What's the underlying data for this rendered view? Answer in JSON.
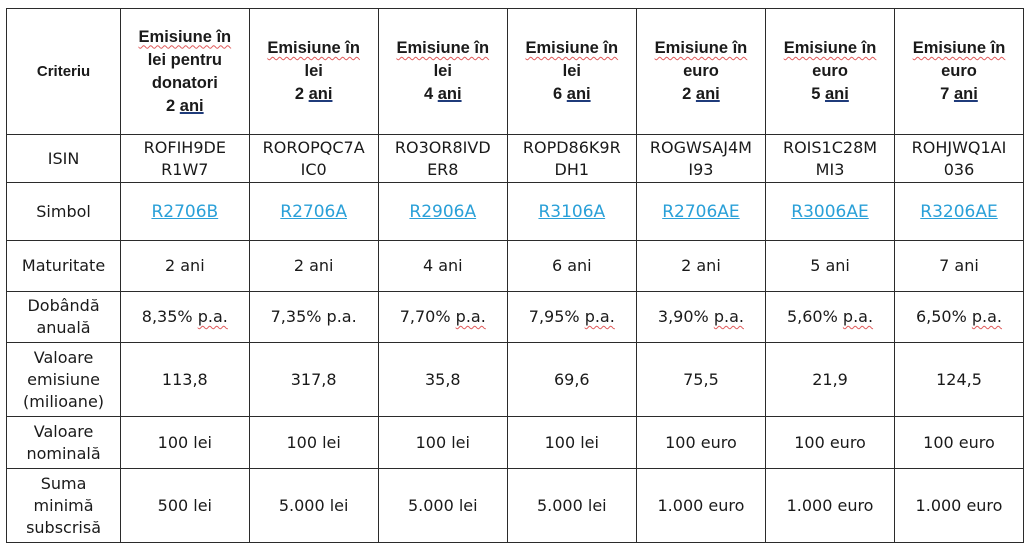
{
  "header": {
    "criteria_label": "Criteriu",
    "columns": [
      {
        "line1": "Emisiune în",
        "line2": "lei pentru",
        "line3": "donatori",
        "years_num": "2",
        "years_word": "ani"
      },
      {
        "line1": "Emisiune în",
        "line2": "lei",
        "years_num": "2",
        "years_word": "ani"
      },
      {
        "line1": "Emisiune în",
        "line2": "lei",
        "years_num": "4",
        "years_word": "ani"
      },
      {
        "line1": "Emisiune în",
        "line2": "lei",
        "years_num": "6",
        "years_word": "ani"
      },
      {
        "line1": "Emisiune în",
        "line2": "euro",
        "years_num": "2",
        "years_word": "ani"
      },
      {
        "line1": "Emisiune în",
        "line2": "euro",
        "years_num": "5",
        "years_word": "ani"
      },
      {
        "line1": "Emisiune în",
        "line2": "euro",
        "years_num": "7",
        "years_word": "ani"
      }
    ]
  },
  "rows": {
    "isin": {
      "label": "ISIN",
      "values": [
        "ROFIH9DE\nR1W7",
        "ROROPQC7A\nIC0",
        "RO3OR8IVD\nER8",
        "ROPD86K9R\nDH1",
        "ROGWSAJ4M\nI93",
        "ROIS1C28M\nMI3",
        "ROHJWQ1AI\n036"
      ]
    },
    "simbol": {
      "label": "Simbol",
      "values": [
        "R2706B",
        "R2706A",
        "R2906A",
        "R3106A",
        "R2706AE",
        "R3006AE",
        "R3206AE"
      ]
    },
    "maturitate": {
      "label": "Maturitate",
      "values": [
        "2 ani",
        "2 ani",
        "4 ani",
        "6 ani",
        "2 ani",
        "5 ani",
        "7 ani"
      ]
    },
    "dobanda": {
      "label": "Dobândă\nanuală",
      "values": [
        "8,35%",
        "7,35%",
        "7,70%",
        "7,95%",
        "3,90%",
        "5,60%",
        "6,50%"
      ],
      "unit": "p.a."
    },
    "valoare_emisiune": {
      "label": "Valoare\nemisiune\n(milioane)",
      "values": [
        "113,8",
        "317,8",
        "35,8",
        "69,6",
        "75,5",
        "21,9",
        "124,5"
      ]
    },
    "valoare_nominala": {
      "label": "Valoare\nnominală",
      "values": [
        "100 lei",
        "100 lei",
        "100 lei",
        "100 lei",
        "100 euro",
        "100 euro",
        "100 euro"
      ]
    },
    "suma_minima": {
      "label": "Suma\nminimă\nsubscrisă",
      "values": [
        "500 lei",
        "5.000 lei",
        "5.000 lei",
        "5.000 lei",
        "1.000 euro",
        "1.000 euro",
        "1.000 euro"
      ]
    }
  },
  "colors": {
    "link": "#2aa0d8",
    "border": "#2b2b2b",
    "spellcheck": "#e05a5a"
  }
}
